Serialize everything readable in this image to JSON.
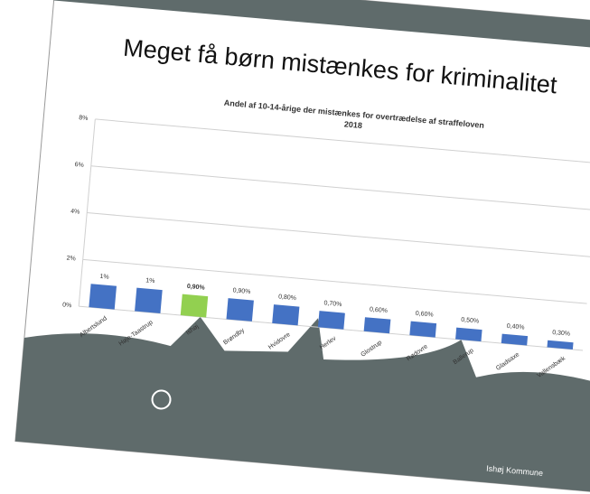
{
  "chart_data": {
    "type": "bar",
    "title": "Meget få børn mistænkes for kriminalitet",
    "subtitle": "Andel af 10-14-årige der mistænkes for overtrædelse af straffeloven",
    "year": "2018",
    "footer": "Ishøj Kommune",
    "categories": [
      "Albertslund",
      "Høje-Taastrup",
      "Ishøj",
      "Brøndby",
      "Hvidovre",
      "Herlev",
      "Glostrup",
      "Rødovre",
      "Ballerup",
      "Gladsaxe",
      "Vallensbæk"
    ],
    "values": [
      1,
      1,
      0.9,
      0.9,
      0.8,
      0.7,
      0.6,
      0.6,
      0.5,
      0.4,
      0.3
    ],
    "value_labels": [
      "1%",
      "1%",
      "0,90%",
      "0,90%",
      "0,80%",
      "0,70%",
      "0,60%",
      "0,60%",
      "0,50%",
      "0,40%",
      "0,30%"
    ],
    "colors": [
      "#4472c4",
      "#4472c4",
      "#92d050",
      "#4472c4",
      "#4472c4",
      "#4472c4",
      "#4472c4",
      "#4472c4",
      "#4472c4",
      "#4472c4",
      "#4472c4"
    ],
    "ylim": [
      0,
      8
    ],
    "yticks": [
      {
        "value": 0,
        "label": "0%"
      },
      {
        "value": 2,
        "label": "2%"
      },
      {
        "value": 4,
        "label": "4%"
      },
      {
        "value": 6,
        "label": "6%"
      },
      {
        "value": 8,
        "label": "8%"
      }
    ],
    "grid": true
  }
}
